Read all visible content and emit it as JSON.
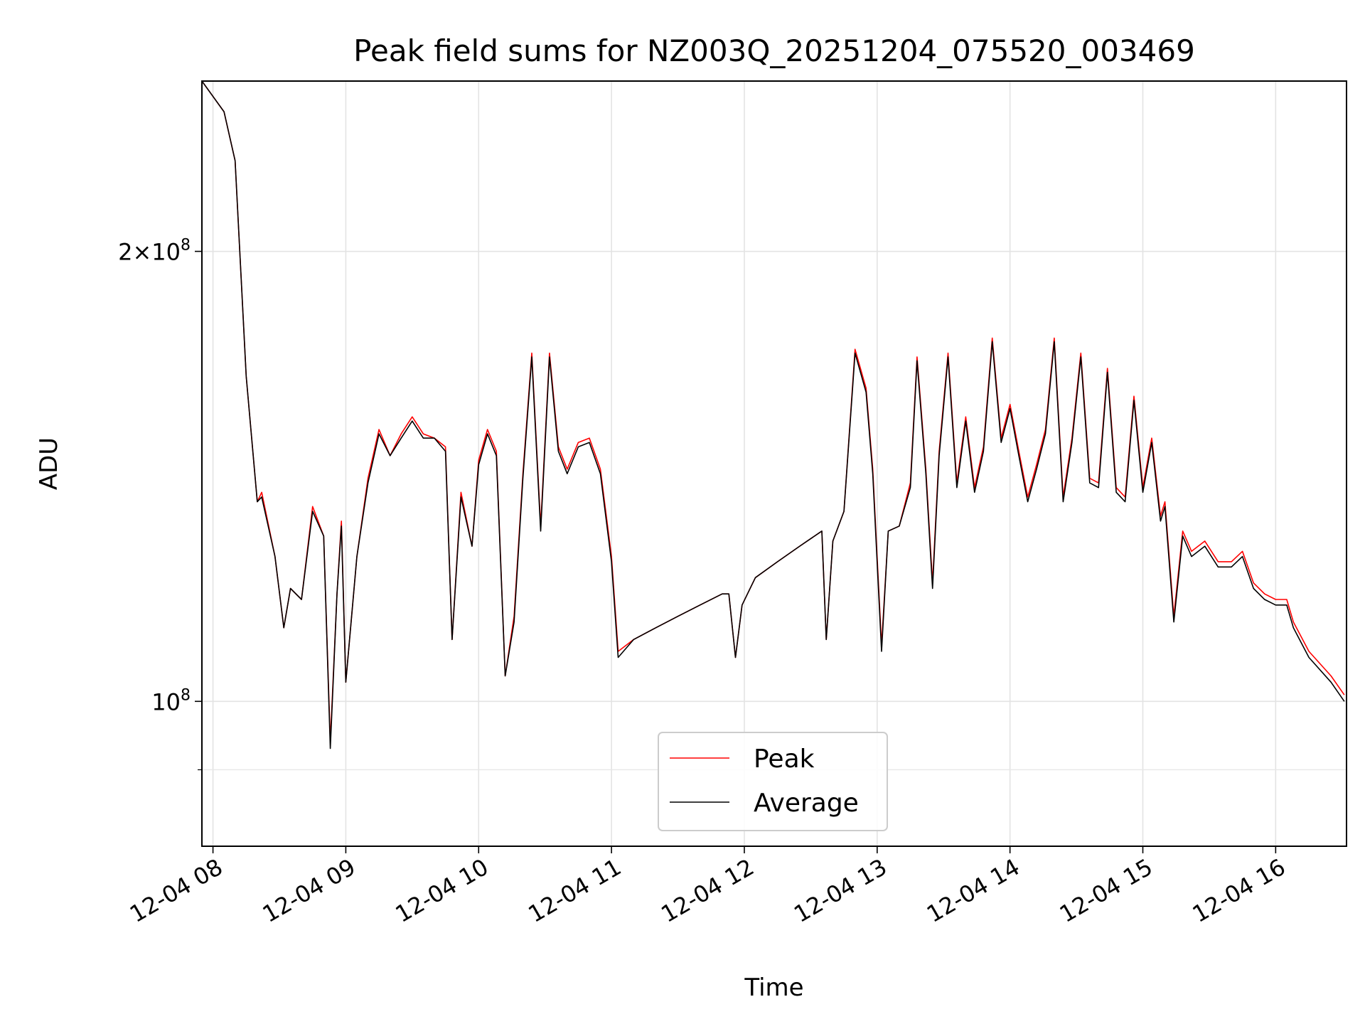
{
  "chart_data": {
    "type": "line",
    "title": "Peak field sums for NZ003Q_20251204_075520_003469",
    "xlabel": "Time",
    "ylabel": "ADU",
    "y_scale": "log",
    "ylim": [
      80000000,
      260000000
    ],
    "xlim": [
      "2025-12-04 07:55",
      "2025-12-04 16:32"
    ],
    "grid": true,
    "legend_position": "lower center",
    "x_ticks": [
      {
        "t": "2025-12-04 08:00",
        "label": "12-04 08"
      },
      {
        "t": "2025-12-04 09:00",
        "label": "12-04 09"
      },
      {
        "t": "2025-12-04 10:00",
        "label": "12-04 10"
      },
      {
        "t": "2025-12-04 11:00",
        "label": "12-04 11"
      },
      {
        "t": "2025-12-04 12:00",
        "label": "12-04 12"
      },
      {
        "t": "2025-12-04 13:00",
        "label": "12-04 13"
      },
      {
        "t": "2025-12-04 14:00",
        "label": "12-04 14"
      },
      {
        "t": "2025-12-04 15:00",
        "label": "12-04 15"
      },
      {
        "t": "2025-12-04 16:00",
        "label": "12-04 16"
      }
    ],
    "y_ticks_major": [
      {
        "v": 100000000,
        "base": "10",
        "exp": "8"
      },
      {
        "v": 200000000,
        "mant": "2",
        "base": "10",
        "exp": "8"
      }
    ],
    "y_ticks_minor": [
      90000000
    ],
    "series": [
      {
        "name": "Peak",
        "color": "#ff0000",
        "points": [
          [
            "2025-12-04 07:55",
            260000000
          ],
          [
            "2025-12-04 08:05",
            248000000
          ],
          [
            "2025-12-04 08:10",
            230000000
          ],
          [
            "2025-12-04 08:15",
            165000000
          ],
          [
            "2025-12-04 08:20",
            136000000
          ],
          [
            "2025-12-04 08:22",
            138000000
          ],
          [
            "2025-12-04 08:28",
            125000000
          ],
          [
            "2025-12-04 08:32",
            112000000
          ],
          [
            "2025-12-04 08:35",
            119000000
          ],
          [
            "2025-12-04 08:40",
            117000000
          ],
          [
            "2025-12-04 08:45",
            135000000
          ],
          [
            "2025-12-04 08:50",
            129000000
          ],
          [
            "2025-12-04 08:53",
            94000000
          ],
          [
            "2025-12-04 08:56",
            118000000
          ],
          [
            "2025-12-04 08:58",
            132000000
          ],
          [
            "2025-12-04 09:00",
            103000000
          ],
          [
            "2025-12-04 09:05",
            125000000
          ],
          [
            "2025-12-04 09:10",
            141000000
          ],
          [
            "2025-12-04 09:15",
            152000000
          ],
          [
            "2025-12-04 09:20",
            146000000
          ],
          [
            "2025-12-04 09:25",
            151000000
          ],
          [
            "2025-12-04 09:30",
            155000000
          ],
          [
            "2025-12-04 09:35",
            151000000
          ],
          [
            "2025-12-04 09:40",
            150000000
          ],
          [
            "2025-12-04 09:45",
            148000000
          ],
          [
            "2025-12-04 09:48",
            110000000
          ],
          [
            "2025-12-04 09:52",
            138000000
          ],
          [
            "2025-12-04 09:57",
            127000000
          ],
          [
            "2025-12-04 10:00",
            145000000
          ],
          [
            "2025-12-04 10:04",
            152000000
          ],
          [
            "2025-12-04 10:08",
            147000000
          ],
          [
            "2025-12-04 10:12",
            104000000
          ],
          [
            "2025-12-04 10:16",
            114000000
          ],
          [
            "2025-12-04 10:20",
            142000000
          ],
          [
            "2025-12-04 10:24",
            171000000
          ],
          [
            "2025-12-04 10:28",
            131000000
          ],
          [
            "2025-12-04 10:32",
            171000000
          ],
          [
            "2025-12-04 10:36",
            148000000
          ],
          [
            "2025-12-04 10:40",
            143000000
          ],
          [
            "2025-12-04 10:45",
            149000000
          ],
          [
            "2025-12-04 10:50",
            150000000
          ],
          [
            "2025-12-04 10:55",
            143000000
          ],
          [
            "2025-12-04 11:00",
            125000000
          ],
          [
            "2025-12-04 11:03",
            108000000
          ],
          [
            "2025-12-04 11:10",
            110000000
          ],
          [
            "2025-12-04 11:20",
            112000000
          ],
          [
            "2025-12-04 11:30",
            114000000
          ],
          [
            "2025-12-04 11:40",
            116000000
          ],
          [
            "2025-12-04 11:50",
            118000000
          ],
          [
            "2025-12-04 11:53",
            118000000
          ],
          [
            "2025-12-04 11:56",
            107000000
          ],
          [
            "2025-12-04 11:59",
            116000000
          ],
          [
            "2025-12-04 12:05",
            121000000
          ],
          [
            "2025-12-04 12:15",
            124000000
          ],
          [
            "2025-12-04 12:25",
            127000000
          ],
          [
            "2025-12-04 12:35",
            130000000
          ],
          [
            "2025-12-04 12:37",
            110000000
          ],
          [
            "2025-12-04 12:40",
            128000000
          ],
          [
            "2025-12-04 12:45",
            134000000
          ],
          [
            "2025-12-04 12:50",
            172000000
          ],
          [
            "2025-12-04 12:55",
            162000000
          ],
          [
            "2025-12-04 12:58",
            143000000
          ],
          [
            "2025-12-04 13:02",
            109000000
          ],
          [
            "2025-12-04 13:05",
            130000000
          ],
          [
            "2025-12-04 13:10",
            131000000
          ],
          [
            "2025-12-04 13:15",
            140000000
          ],
          [
            "2025-12-04 13:18",
            170000000
          ],
          [
            "2025-12-04 13:22",
            143000000
          ],
          [
            "2025-12-04 13:25",
            120000000
          ],
          [
            "2025-12-04 13:28",
            147000000
          ],
          [
            "2025-12-04 13:32",
            171000000
          ],
          [
            "2025-12-04 13:36",
            140000000
          ],
          [
            "2025-12-04 13:40",
            155000000
          ],
          [
            "2025-12-04 13:44",
            139000000
          ],
          [
            "2025-12-04 13:48",
            148000000
          ],
          [
            "2025-12-04 13:52",
            175000000
          ],
          [
            "2025-12-04 13:56",
            150000000
          ],
          [
            "2025-12-04 14:00",
            158000000
          ],
          [
            "2025-12-04 14:04",
            147000000
          ],
          [
            "2025-12-04 14:08",
            137000000
          ],
          [
            "2025-12-04 14:12",
            144000000
          ],
          [
            "2025-12-04 14:16",
            152000000
          ],
          [
            "2025-12-04 14:20",
            175000000
          ],
          [
            "2025-12-04 14:24",
            137000000
          ],
          [
            "2025-12-04 14:28",
            150000000
          ],
          [
            "2025-12-04 14:32",
            171000000
          ],
          [
            "2025-12-04 14:36",
            141000000
          ],
          [
            "2025-12-04 14:40",
            140000000
          ],
          [
            "2025-12-04 14:44",
            167000000
          ],
          [
            "2025-12-04 14:48",
            139000000
          ],
          [
            "2025-12-04 14:52",
            137000000
          ],
          [
            "2025-12-04 14:56",
            160000000
          ],
          [
            "2025-12-04 15:00",
            139000000
          ],
          [
            "2025-12-04 15:04",
            150000000
          ],
          [
            "2025-12-04 15:08",
            133000000
          ],
          [
            "2025-12-04 15:10",
            136000000
          ],
          [
            "2025-12-04 15:14",
            114000000
          ],
          [
            "2025-12-04 15:18",
            130000000
          ],
          [
            "2025-12-04 15:22",
            126000000
          ],
          [
            "2025-12-04 15:28",
            128000000
          ],
          [
            "2025-12-04 15:34",
            124000000
          ],
          [
            "2025-12-04 15:40",
            124000000
          ],
          [
            "2025-12-04 15:45",
            126000000
          ],
          [
            "2025-12-04 15:50",
            120000000
          ],
          [
            "2025-12-04 15:55",
            118000000
          ],
          [
            "2025-12-04 16:00",
            117000000
          ],
          [
            "2025-12-04 16:05",
            117000000
          ],
          [
            "2025-12-04 16:08",
            113000000
          ],
          [
            "2025-12-04 16:15",
            108000000
          ],
          [
            "2025-12-04 16:25",
            104000000
          ],
          [
            "2025-12-04 16:31",
            101000000
          ]
        ]
      },
      {
        "name": "Average",
        "color": "#000000",
        "points": [
          [
            "2025-12-04 07:55",
            260000000
          ],
          [
            "2025-12-04 08:05",
            248000000
          ],
          [
            "2025-12-04 08:10",
            230000000
          ],
          [
            "2025-12-04 08:15",
            165000000
          ],
          [
            "2025-12-04 08:20",
            136000000
          ],
          [
            "2025-12-04 08:22",
            137000000
          ],
          [
            "2025-12-04 08:28",
            125000000
          ],
          [
            "2025-12-04 08:32",
            112000000
          ],
          [
            "2025-12-04 08:35",
            119000000
          ],
          [
            "2025-12-04 08:40",
            117000000
          ],
          [
            "2025-12-04 08:45",
            134000000
          ],
          [
            "2025-12-04 08:50",
            129000000
          ],
          [
            "2025-12-04 08:53",
            93000000
          ],
          [
            "2025-12-04 08:56",
            118000000
          ],
          [
            "2025-12-04 08:58",
            131000000
          ],
          [
            "2025-12-04 09:00",
            103000000
          ],
          [
            "2025-12-04 09:05",
            125000000
          ],
          [
            "2025-12-04 09:10",
            140000000
          ],
          [
            "2025-12-04 09:15",
            151000000
          ],
          [
            "2025-12-04 09:20",
            146000000
          ],
          [
            "2025-12-04 09:25",
            150000000
          ],
          [
            "2025-12-04 09:30",
            154000000
          ],
          [
            "2025-12-04 09:35",
            150000000
          ],
          [
            "2025-12-04 09:40",
            150000000
          ],
          [
            "2025-12-04 09:45",
            147000000
          ],
          [
            "2025-12-04 09:48",
            110000000
          ],
          [
            "2025-12-04 09:52",
            137000000
          ],
          [
            "2025-12-04 09:57",
            127000000
          ],
          [
            "2025-12-04 10:00",
            144000000
          ],
          [
            "2025-12-04 10:04",
            151000000
          ],
          [
            "2025-12-04 10:08",
            146000000
          ],
          [
            "2025-12-04 10:12",
            104000000
          ],
          [
            "2025-12-04 10:16",
            113000000
          ],
          [
            "2025-12-04 10:20",
            141000000
          ],
          [
            "2025-12-04 10:24",
            170000000
          ],
          [
            "2025-12-04 10:28",
            130000000
          ],
          [
            "2025-12-04 10:32",
            170000000
          ],
          [
            "2025-12-04 10:36",
            147000000
          ],
          [
            "2025-12-04 10:40",
            142000000
          ],
          [
            "2025-12-04 10:45",
            148000000
          ],
          [
            "2025-12-04 10:50",
            149000000
          ],
          [
            "2025-12-04 10:55",
            142000000
          ],
          [
            "2025-12-04 11:00",
            124000000
          ],
          [
            "2025-12-04 11:03",
            107000000
          ],
          [
            "2025-12-04 11:10",
            110000000
          ],
          [
            "2025-12-04 11:20",
            112000000
          ],
          [
            "2025-12-04 11:30",
            114000000
          ],
          [
            "2025-12-04 11:40",
            116000000
          ],
          [
            "2025-12-04 11:50",
            118000000
          ],
          [
            "2025-12-04 11:53",
            118000000
          ],
          [
            "2025-12-04 11:56",
            107000000
          ],
          [
            "2025-12-04 11:59",
            116000000
          ],
          [
            "2025-12-04 12:05",
            121000000
          ],
          [
            "2025-12-04 12:15",
            124000000
          ],
          [
            "2025-12-04 12:25",
            127000000
          ],
          [
            "2025-12-04 12:35",
            130000000
          ],
          [
            "2025-12-04 12:37",
            110000000
          ],
          [
            "2025-12-04 12:40",
            128000000
          ],
          [
            "2025-12-04 12:45",
            134000000
          ],
          [
            "2025-12-04 12:50",
            171000000
          ],
          [
            "2025-12-04 12:55",
            161000000
          ],
          [
            "2025-12-04 12:58",
            142000000
          ],
          [
            "2025-12-04 13:02",
            108000000
          ],
          [
            "2025-12-04 13:05",
            130000000
          ],
          [
            "2025-12-04 13:10",
            131000000
          ],
          [
            "2025-12-04 13:15",
            139000000
          ],
          [
            "2025-12-04 13:18",
            169000000
          ],
          [
            "2025-12-04 13:22",
            142000000
          ],
          [
            "2025-12-04 13:25",
            119000000
          ],
          [
            "2025-12-04 13:28",
            146000000
          ],
          [
            "2025-12-04 13:32",
            170000000
          ],
          [
            "2025-12-04 13:36",
            139000000
          ],
          [
            "2025-12-04 13:40",
            154000000
          ],
          [
            "2025-12-04 13:44",
            138000000
          ],
          [
            "2025-12-04 13:48",
            147000000
          ],
          [
            "2025-12-04 13:52",
            174000000
          ],
          [
            "2025-12-04 13:56",
            149000000
          ],
          [
            "2025-12-04 14:00",
            157000000
          ],
          [
            "2025-12-04 14:04",
            146000000
          ],
          [
            "2025-12-04 14:08",
            136000000
          ],
          [
            "2025-12-04 14:12",
            143000000
          ],
          [
            "2025-12-04 14:16",
            151000000
          ],
          [
            "2025-12-04 14:20",
            174000000
          ],
          [
            "2025-12-04 14:24",
            136000000
          ],
          [
            "2025-12-04 14:28",
            149000000
          ],
          [
            "2025-12-04 14:32",
            170000000
          ],
          [
            "2025-12-04 14:36",
            140000000
          ],
          [
            "2025-12-04 14:40",
            139000000
          ],
          [
            "2025-12-04 14:44",
            166000000
          ],
          [
            "2025-12-04 14:48",
            138000000
          ],
          [
            "2025-12-04 14:52",
            136000000
          ],
          [
            "2025-12-04 14:56",
            159000000
          ],
          [
            "2025-12-04 15:00",
            138000000
          ],
          [
            "2025-12-04 15:04",
            149000000
          ],
          [
            "2025-12-04 15:08",
            132000000
          ],
          [
            "2025-12-04 15:10",
            135000000
          ],
          [
            "2025-12-04 15:14",
            113000000
          ],
          [
            "2025-12-04 15:18",
            129000000
          ],
          [
            "2025-12-04 15:22",
            125000000
          ],
          [
            "2025-12-04 15:28",
            127000000
          ],
          [
            "2025-12-04 15:34",
            123000000
          ],
          [
            "2025-12-04 15:40",
            123000000
          ],
          [
            "2025-12-04 15:45",
            125000000
          ],
          [
            "2025-12-04 15:50",
            119000000
          ],
          [
            "2025-12-04 15:55",
            117000000
          ],
          [
            "2025-12-04 16:00",
            116000000
          ],
          [
            "2025-12-04 16:05",
            116000000
          ],
          [
            "2025-12-04 16:08",
            112000000
          ],
          [
            "2025-12-04 16:15",
            107000000
          ],
          [
            "2025-12-04 16:25",
            103000000
          ],
          [
            "2025-12-04 16:31",
            100000000
          ]
        ]
      }
    ]
  }
}
